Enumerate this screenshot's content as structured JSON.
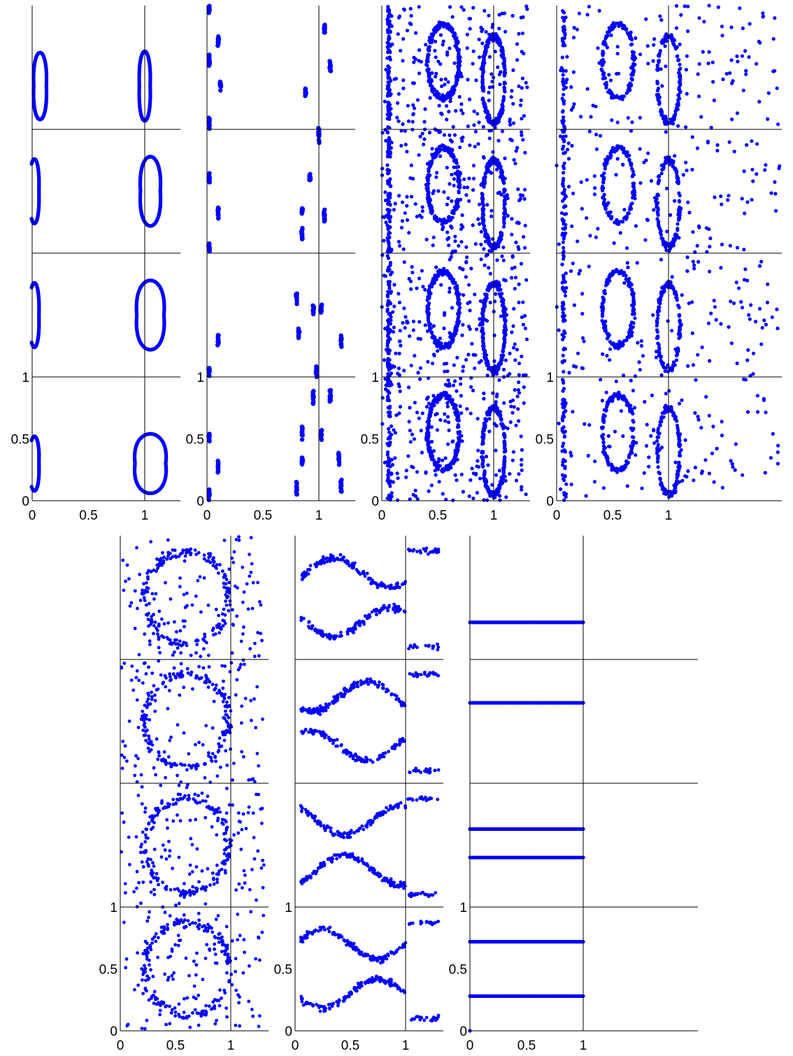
{
  "figure": {
    "marker_color": "#0000ff",
    "axis_color": "#000000"
  },
  "chart_data": [
    {
      "id": "panel-1",
      "type": "scatter",
      "pattern": "closed-loops",
      "xlim": [
        0,
        1.3
      ],
      "ylim": [
        0,
        4
      ],
      "xticks": [
        "0",
        "0.5",
        "1"
      ],
      "yticks": [
        "0",
        "0.5",
        "1"
      ],
      "ytick_values": [
        0,
        0.5,
        1
      ],
      "rows": [
        {
          "y0": 0,
          "loops": [
            {
              "cx": 0.02,
              "cy": 0.3,
              "rx": 0.05,
              "ry": 0.22
            },
            {
              "cx": 1.05,
              "cy": 0.3,
              "rx": 0.17,
              "ry": 0.24
            }
          ]
        },
        {
          "y0": 1,
          "loops": [
            {
              "cx": 0.02,
              "cy": 0.5,
              "rx": 0.05,
              "ry": 0.26
            },
            {
              "cx": 1.05,
              "cy": 0.5,
              "rx": 0.15,
              "ry": 0.28
            }
          ]
        },
        {
          "y0": 2,
          "loops": [
            {
              "cx": 0.02,
              "cy": 0.5,
              "rx": 0.05,
              "ry": 0.26
            },
            {
              "cx": 1.05,
              "cy": 0.5,
              "rx": 0.11,
              "ry": 0.28
            }
          ]
        },
        {
          "y0": 3,
          "loops": [
            {
              "cx": 0.07,
              "cy": 0.35,
              "rx": 0.07,
              "ry": 0.27
            },
            {
              "cx": 1.0,
              "cy": 0.35,
              "rx": 0.06,
              "ry": 0.28
            }
          ]
        }
      ]
    },
    {
      "id": "panel-2",
      "type": "scatter",
      "pattern": "island-chains",
      "xlim": [
        0,
        1.3
      ],
      "ylim": [
        0,
        4
      ],
      "xticks": [
        "0",
        "0.5",
        "1"
      ],
      "yticks": [
        "0",
        "0.5",
        "1"
      ],
      "ytick_values": [
        0,
        0.5,
        1
      ],
      "islands": [
        [
          0.02,
          0.05
        ],
        [
          0.1,
          0.27
        ],
        [
          0.02,
          0.5
        ],
        [
          0.8,
          0.1
        ],
        [
          1.2,
          0.12
        ],
        [
          0.85,
          0.33
        ],
        [
          1.18,
          0.33
        ],
        [
          0.85,
          0.55
        ],
        [
          1.02,
          0.54
        ],
        [
          0.95,
          0.85
        ],
        [
          1.1,
          0.85
        ],
        [
          0.02,
          1.05
        ],
        [
          0.1,
          1.3
        ],
        [
          0.8,
          1.65
        ],
        [
          1.2,
          1.3
        ],
        [
          0.82,
          1.35
        ],
        [
          0.95,
          1.55
        ],
        [
          1.02,
          1.55
        ],
        [
          0.98,
          1.05
        ],
        [
          0.02,
          2.05
        ],
        [
          0.1,
          2.33
        ],
        [
          0.02,
          2.6
        ],
        [
          0.85,
          2.15
        ],
        [
          1.05,
          2.3
        ],
        [
          0.92,
          2.6
        ],
        [
          1.0,
          2.95
        ],
        [
          0.85,
          2.35
        ],
        [
          0.02,
          3.05
        ],
        [
          0.12,
          3.35
        ],
        [
          0.1,
          3.7
        ],
        [
          0.02,
          3.55
        ],
        [
          0.88,
          3.3
        ],
        [
          1.1,
          3.5
        ],
        [
          1.05,
          3.82
        ],
        [
          0.02,
          3.97
        ]
      ]
    },
    {
      "id": "panel-3",
      "type": "scatter",
      "pattern": "dense-chaotic",
      "xlim": [
        0,
        1.3
      ],
      "ylim": [
        0,
        4
      ],
      "xticks": [
        "0",
        "0.5",
        "1"
      ],
      "yticks": [
        "0",
        "0.5",
        "1"
      ],
      "ytick_values": [
        0,
        0.5,
        1
      ]
    },
    {
      "id": "panel-4",
      "type": "scatter",
      "pattern": "dense-chaotic",
      "xlim": [
        0,
        2
      ],
      "ylim": [
        0,
        4
      ],
      "xticks": [
        "0",
        "0.5",
        "1"
      ],
      "yticks": [
        "0",
        "0.5",
        "1"
      ],
      "ytick_values": [
        0,
        0.5,
        1
      ]
    },
    {
      "id": "panel-5",
      "type": "scatter",
      "pattern": "sparse-chaotic",
      "xlim": [
        0,
        1.3
      ],
      "ylim": [
        0,
        4
      ],
      "xticks": [
        "0",
        "0.5",
        "1"
      ],
      "yticks": [
        "0",
        "0.5",
        "1"
      ],
      "ytick_values": [
        0,
        0.5,
        1
      ]
    },
    {
      "id": "panel-6",
      "type": "scatter",
      "pattern": "bands",
      "xlim": [
        0,
        1.3
      ],
      "ylim": [
        0,
        4
      ],
      "xticks": [
        "0",
        "0.5",
        "1"
      ],
      "yticks": [
        "0",
        "0.5",
        "1"
      ],
      "ytick_values": [
        0,
        0.5,
        1
      ]
    },
    {
      "id": "panel-7",
      "type": "scatter",
      "pattern": "horizontal-lines",
      "xlim": [
        0,
        2
      ],
      "ylim": [
        0,
        4
      ],
      "xticks": [
        "0",
        "0.5",
        "1"
      ],
      "yticks": [
        "0",
        "0.5",
        "1"
      ],
      "ytick_values": [
        0,
        0.5,
        1
      ],
      "lines": [
        {
          "y": 2.65,
          "x0": 0,
          "x1": 1
        },
        {
          "y": 3.3,
          "x0": 0,
          "x1": 1
        },
        {
          "y": 1.63,
          "x0": 0,
          "x1": 1
        },
        {
          "y": 1.4,
          "x0": 0,
          "x1": 1
        },
        {
          "y": 0.72,
          "x0": 0,
          "x1": 1
        },
        {
          "y": 0.28,
          "x0": 0,
          "x1": 1
        }
      ],
      "points": [
        [
          0,
          0.0
        ]
      ]
    }
  ]
}
